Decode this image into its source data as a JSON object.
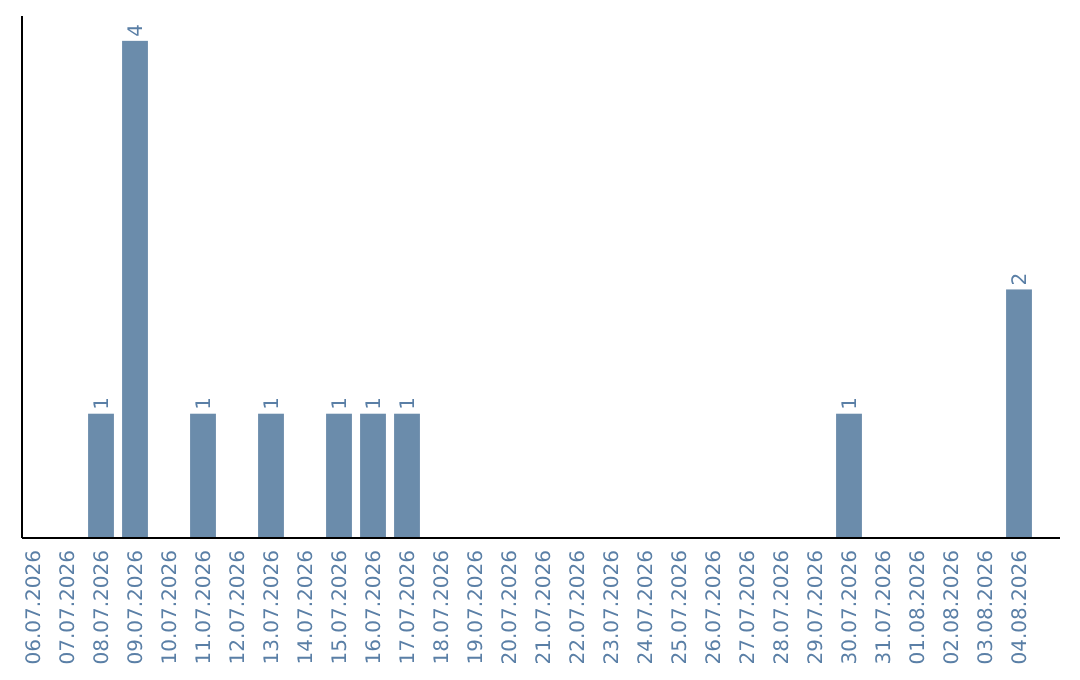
{
  "chart_data": {
    "type": "bar",
    "categories": [
      "06.07.2026",
      "07.07.2026",
      "08.07.2026",
      "09.07.2026",
      "10.07.2026",
      "11.07.2026",
      "12.07.2026",
      "13.07.2026",
      "14.07.2026",
      "15.07.2026",
      "16.07.2026",
      "17.07.2026",
      "18.07.2026",
      "19.07.2026",
      "20.07.2026",
      "21.07.2026",
      "22.07.2026",
      "23.07.2026",
      "24.07.2026",
      "25.07.2026",
      "26.07.2026",
      "27.07.2026",
      "28.07.2026",
      "29.07.2026",
      "30.07.2026",
      "31.07.2026",
      "01.08.2026",
      "02.08.2026",
      "03.08.2026",
      "04.08.2026"
    ],
    "values": [
      0,
      0,
      1,
      4,
      0,
      1,
      0,
      1,
      0,
      1,
      1,
      1,
      0,
      0,
      0,
      0,
      0,
      0,
      0,
      0,
      0,
      0,
      0,
      0,
      1,
      0,
      0,
      0,
      0,
      2
    ],
    "value_labels": [
      null,
      null,
      "1",
      "4",
      null,
      "1",
      null,
      "1",
      null,
      "1",
      "1",
      "1",
      null,
      null,
      null,
      null,
      null,
      null,
      null,
      null,
      null,
      null,
      null,
      null,
      "1",
      null,
      null,
      null,
      null,
      "2"
    ],
    "color": "#6b8cab"
  }
}
